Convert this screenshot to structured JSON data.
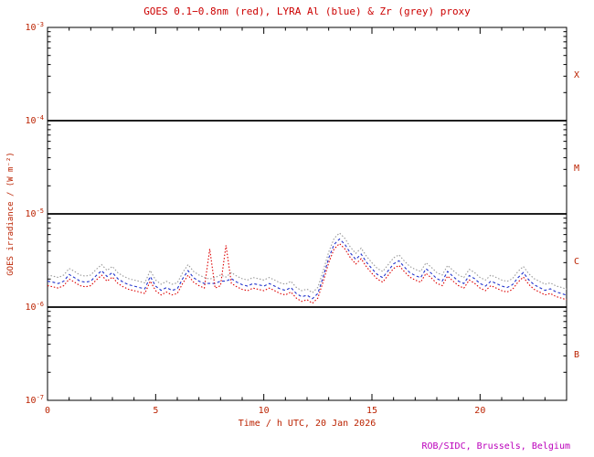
{
  "chart_data": {
    "type": "line",
    "title": "GOES 0.1−0.8nm (red), LYRA Al (blue) & Zr (grey) proxy",
    "xlabel": "Time / h UTC, 20 Jan 2026",
    "ylabel": "GOES irradiance / (W m⁻²)",
    "footer": "ROB/SIDC, Brussels, Belgium",
    "x_range_hours": [
      0,
      24
    ],
    "y_log_range_exp": [
      -7,
      -3
    ],
    "xticks": [
      0,
      5,
      10,
      15,
      20
    ],
    "ytick_exponents": [
      -3,
      -4,
      -5,
      -6,
      -7
    ],
    "threshold_lines": [
      0.0001,
      1e-05,
      1e-06
    ],
    "flare_classes": [
      {
        "label": "X"
      },
      {
        "label": "M"
      },
      {
        "label": "C"
      },
      {
        "label": "B"
      }
    ],
    "grid": "off",
    "legend": "encoded in title colors",
    "value_scale": 1e-06,
    "value_unit": "×10⁻⁶ W m⁻²",
    "colors": {
      "title": "#cc0000",
      "axis_text": "#bb2200",
      "class_text": "#bb2200",
      "footer": "#bb00bb",
      "frame": "#000000",
      "red_series": "#dd0000",
      "blue_series": "#2233cc",
      "grey_series": "#999999"
    },
    "x_hours": [
      0,
      0.25,
      0.5,
      0.75,
      1,
      1.25,
      1.5,
      1.75,
      2,
      2.25,
      2.5,
      2.75,
      3,
      3.25,
      3.5,
      3.75,
      4,
      4.25,
      4.5,
      4.75,
      5,
      5.25,
      5.5,
      5.75,
      6,
      6.25,
      6.5,
      6.75,
      7,
      7.25,
      7.5,
      7.75,
      8,
      8.25,
      8.5,
      8.75,
      9,
      9.25,
      9.5,
      9.75,
      10,
      10.25,
      10.5,
      10.75,
      11,
      11.25,
      11.5,
      11.75,
      12,
      12.25,
      12.5,
      12.75,
      13,
      13.25,
      13.5,
      13.75,
      14,
      14.25,
      14.5,
      14.75,
      15,
      15.25,
      15.5,
      15.75,
      16,
      16.25,
      16.5,
      16.75,
      17,
      17.25,
      17.5,
      17.75,
      18,
      18.25,
      18.5,
      18.75,
      19,
      19.25,
      19.5,
      19.75,
      20,
      20.25,
      20.5,
      20.75,
      21,
      21.25,
      21.5,
      21.75,
      22,
      22.25,
      22.5,
      22.75,
      23,
      23.25,
      23.5,
      23.75,
      24
    ],
    "series": [
      {
        "name": "GOES 0.1-0.8nm",
        "color": "#dd0000",
        "dash": "1.5,2",
        "values": [
          1.7,
          1.65,
          1.6,
          1.7,
          2.0,
          1.85,
          1.7,
          1.65,
          1.7,
          1.95,
          2.2,
          1.9,
          2.1,
          1.8,
          1.65,
          1.55,
          1.5,
          1.45,
          1.4,
          1.9,
          1.5,
          1.35,
          1.45,
          1.35,
          1.4,
          1.8,
          2.2,
          1.85,
          1.7,
          1.6,
          4.2,
          1.6,
          1.7,
          4.6,
          1.8,
          1.65,
          1.55,
          1.5,
          1.6,
          1.55,
          1.5,
          1.6,
          1.5,
          1.4,
          1.35,
          1.45,
          1.25,
          1.15,
          1.2,
          1.1,
          1.25,
          1.9,
          3.0,
          4.2,
          4.8,
          4.2,
          3.4,
          2.9,
          3.3,
          2.7,
          2.3,
          2.0,
          1.85,
          2.2,
          2.6,
          2.8,
          2.4,
          2.1,
          1.95,
          1.85,
          2.3,
          2.05,
          1.8,
          1.7,
          2.15,
          1.9,
          1.7,
          1.6,
          1.95,
          1.8,
          1.6,
          1.5,
          1.7,
          1.6,
          1.5,
          1.45,
          1.55,
          1.85,
          2.1,
          1.75,
          1.55,
          1.45,
          1.35,
          1.4,
          1.3,
          1.25,
          1.2
        ]
      },
      {
        "name": "LYRA Al proxy",
        "color": "#2233cc",
        "dash": "3,2.5",
        "values": [
          1.9,
          1.85,
          1.79,
          1.9,
          2.24,
          2.07,
          1.9,
          1.85,
          1.9,
          2.18,
          2.46,
          2.13,
          2.35,
          2.02,
          1.85,
          1.74,
          1.68,
          1.62,
          1.57,
          2.13,
          1.68,
          1.51,
          1.62,
          1.51,
          1.57,
          2.02,
          2.46,
          2.07,
          1.9,
          1.79,
          1.8,
          1.79,
          1.9,
          1.9,
          2.02,
          1.85,
          1.74,
          1.68,
          1.79,
          1.74,
          1.68,
          1.79,
          1.68,
          1.57,
          1.51,
          1.62,
          1.4,
          1.29,
          1.34,
          1.23,
          1.4,
          2.13,
          3.36,
          4.7,
          5.38,
          4.7,
          3.81,
          3.25,
          3.7,
          3.02,
          2.58,
          2.24,
          2.07,
          2.46,
          2.91,
          3.14,
          2.69,
          2.35,
          2.18,
          2.07,
          2.58,
          2.3,
          2.02,
          1.9,
          2.41,
          2.13,
          1.9,
          1.79,
          2.18,
          2.02,
          1.79,
          1.68,
          1.9,
          1.79,
          1.68,
          1.62,
          1.74,
          2.07,
          2.35,
          1.96,
          1.74,
          1.62,
          1.51,
          1.57,
          1.46,
          1.4,
          1.34
        ]
      },
      {
        "name": "LYRA Zr proxy",
        "color": "#999999",
        "dash": "1.5,2",
        "values": [
          2.21,
          2.15,
          2.08,
          2.21,
          2.6,
          2.41,
          2.21,
          2.15,
          2.21,
          2.54,
          2.86,
          2.47,
          2.73,
          2.34,
          2.15,
          2.02,
          1.95,
          1.89,
          1.82,
          2.47,
          1.95,
          1.76,
          1.89,
          1.76,
          1.82,
          2.34,
          2.86,
          2.41,
          2.21,
          2.08,
          2.0,
          2.08,
          2.21,
          2.1,
          2.34,
          2.15,
          2.02,
          1.95,
          2.08,
          2.02,
          1.95,
          2.08,
          1.95,
          1.82,
          1.76,
          1.89,
          1.63,
          1.5,
          1.56,
          1.43,
          1.63,
          2.47,
          3.9,
          5.46,
          6.24,
          5.46,
          4.42,
          3.77,
          4.29,
          3.51,
          2.99,
          2.6,
          2.41,
          2.86,
          3.38,
          3.64,
          3.12,
          2.73,
          2.54,
          2.41,
          2.99,
          2.67,
          2.34,
          2.21,
          2.8,
          2.47,
          2.21,
          2.08,
          2.54,
          2.34,
          2.08,
          1.95,
          2.21,
          2.08,
          1.95,
          1.89,
          2.02,
          2.41,
          2.73,
          2.28,
          2.02,
          1.89,
          1.76,
          1.82,
          1.69,
          1.63,
          1.56
        ]
      }
    ]
  }
}
